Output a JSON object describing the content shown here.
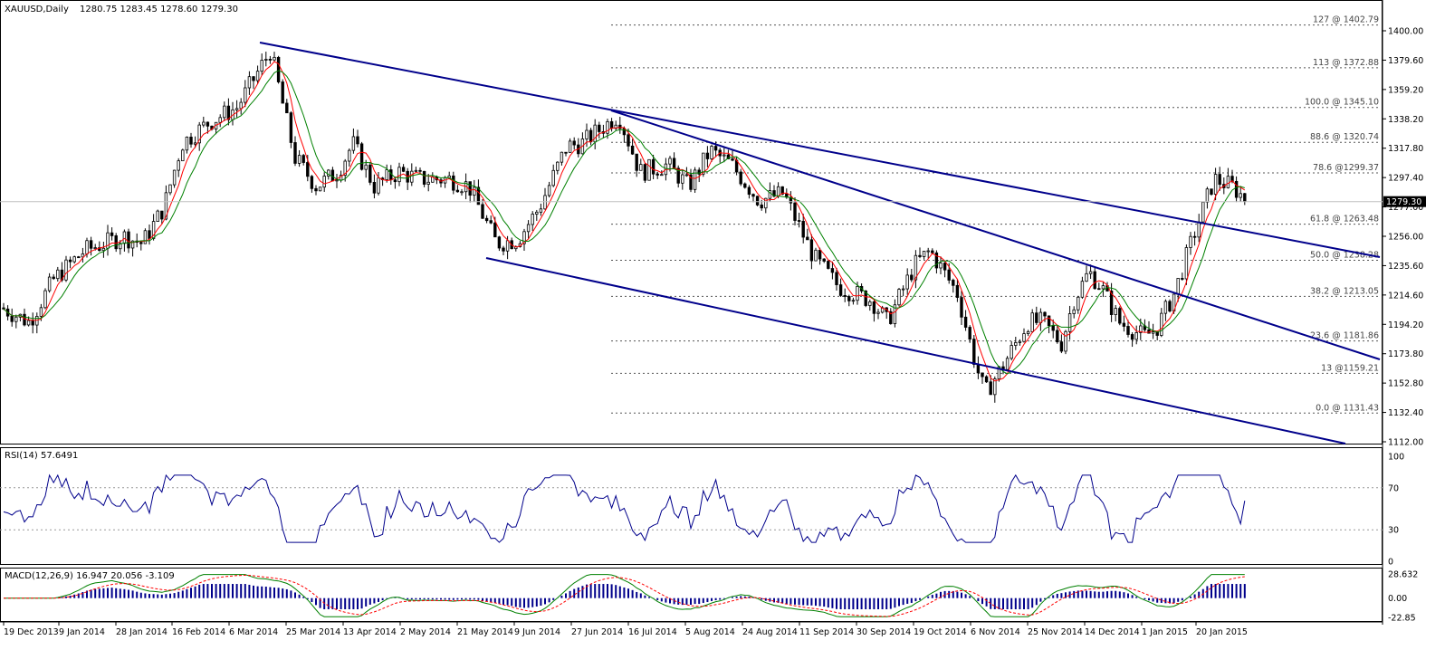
{
  "main_panel": {
    "symbol": "XAUUSD,Daily",
    "ohlc": "1280.75 1283.45 1278.60 1279.30",
    "current_price": "1279.30",
    "y_ticks": [
      "1400.00",
      "1379.60",
      "1359.20",
      "1338.20",
      "1317.80",
      "1297.40",
      "1277.00",
      "1256.00",
      "1235.60",
      "1214.60",
      "1194.20",
      "1173.80",
      "1152.80",
      "1132.40",
      "1112.00"
    ]
  },
  "rsi_panel": {
    "title": "RSI(14) 57.6491",
    "ticks": [
      "100",
      "70",
      "30",
      "0"
    ]
  },
  "macd_panel": {
    "title": "MACD(12,26,9) 16.947 20.056 -3.109",
    "ticks": [
      "28.632",
      "0.00",
      "-22.85"
    ]
  },
  "x_axis": {
    "labels": [
      "19 Dec 2013",
      "9 Jan 2014",
      "28 Jan 2014",
      "16 Feb 2014",
      "6 Mar 2014",
      "25 Mar 2014",
      "13 Apr 2014",
      "2 May 2014",
      "21 May 2014",
      "9 Jun 2014",
      "27 Jun 2014",
      "16 Jul 2014",
      "5 Aug 2014",
      "24 Aug 2014",
      "11 Sep 2014",
      "30 Sep 2014",
      "19 Oct 2014",
      "6 Nov 2014",
      "25 Nov 2014",
      "14 Dec 2014",
      "1 Jan 2015",
      "20 Jan 2015"
    ]
  },
  "chart_data": {
    "type": "line",
    "title": "XAUUSD,Daily",
    "ylim": [
      1112,
      1400
    ],
    "fibonacci_levels": [
      {
        "label": "127 @ 1402.79",
        "value": 1402.79
      },
      {
        "label": "113 @ 1372.88",
        "value": 1372.88
      },
      {
        "label": "100.0 @ 1345.10",
        "value": 1345.1
      },
      {
        "label": "88.6 @ 1320.74",
        "value": 1320.74
      },
      {
        "label": "78.6 @1299.37",
        "value": 1299.37
      },
      {
        "label": "61.8 @ 1263.48",
        "value": 1263.48
      },
      {
        "label": "50.0 @ 1238.28",
        "value": 1238.28
      },
      {
        "label": "38.2 @ 1213.05",
        "value": 1213.05
      },
      {
        "label": "23.6 @ 1181.86",
        "value": 1181.86
      },
      {
        "label": "13 @1159.21",
        "value": 1159.21
      },
      {
        "label": "0.0 @ 1131.43",
        "value": 1131.43
      }
    ],
    "price_anchors": [
      [
        "19 Dec 2013",
        1205
      ],
      [
        "28 Dec 2013",
        1195
      ],
      [
        "5 Jan 2014",
        1225
      ],
      [
        "15 Jan 2014",
        1245
      ],
      [
        "28 Jan 2014",
        1255
      ],
      [
        "3 Feb 2014",
        1250
      ],
      [
        "10 Feb 2014",
        1275
      ],
      [
        "16 Feb 2014",
        1320
      ],
      [
        "25 Feb 2014",
        1335
      ],
      [
        "6 Mar 2014",
        1345
      ],
      [
        "17 Mar 2014",
        1385
      ],
      [
        "25 Mar 2014",
        1310
      ],
      [
        "1 Apr 2014",
        1290
      ],
      [
        "8 Apr 2014",
        1300
      ],
      [
        "13 Apr 2014",
        1320
      ],
      [
        "20 Apr 2014",
        1290
      ],
      [
        "28 Apr 2014",
        1300
      ],
      [
        "5 May 2014",
        1295
      ],
      [
        "15 May 2014",
        1295
      ],
      [
        "21 May 2014",
        1290
      ],
      [
        "30 May 2014",
        1250
      ],
      [
        "6 Jun 2014",
        1253
      ],
      [
        "13 Jun 2014",
        1275
      ],
      [
        "22 Jun 2014",
        1318
      ],
      [
        "27 Jun 2014",
        1320
      ],
      [
        "9 Jul 2014",
        1340
      ],
      [
        "16 Jul 2014",
        1300
      ],
      [
        "25 Jul 2014",
        1305
      ],
      [
        "1 Aug 2014",
        1290
      ],
      [
        "8 Aug 2014",
        1315
      ],
      [
        "15 Aug 2014",
        1305
      ],
      [
        "24 Aug 2014",
        1280
      ],
      [
        "1 Sep 2014",
        1285
      ],
      [
        "11 Sep 2014",
        1240
      ],
      [
        "19 Sep 2014",
        1220
      ],
      [
        "30 Sep 2014",
        1210
      ],
      [
        "5 Oct 2014",
        1195
      ],
      [
        "14 Oct 2014",
        1235
      ],
      [
        "19 Oct 2014",
        1245
      ],
      [
        "28 Oct 2014",
        1215
      ],
      [
        "3 Nov 2014",
        1165
      ],
      [
        "6 Nov 2014",
        1145
      ],
      [
        "12 Nov 2014",
        1165
      ],
      [
        "20 Nov 2014",
        1195
      ],
      [
        "25 Nov 2014",
        1195
      ],
      [
        "1 Dec 2014",
        1180
      ],
      [
        "5 Dec 2014",
        1210
      ],
      [
        "10 Dec 2014",
        1230
      ],
      [
        "14 Dec 2014",
        1220
      ],
      [
        "20 Dec 2014",
        1195
      ],
      [
        "28 Dec 2014",
        1185
      ],
      [
        "1 Jan 2015",
        1190
      ],
      [
        "7 Jan 2015",
        1215
      ],
      [
        "14 Jan 2015",
        1260
      ],
      [
        "20 Jan 2015",
        1295
      ],
      [
        "26 Jan 2015",
        1290
      ],
      [
        "31 Jan 2015",
        1279.3
      ]
    ],
    "rsi": {
      "overbought": 70,
      "oversold": 30,
      "last": 57.6491
    },
    "macd": {
      "main": 16.947,
      "signal": 20.056,
      "histogram": -3.109,
      "ylim": [
        -22.85,
        28.632
      ]
    }
  },
  "colors": {
    "channel": "#00008b",
    "ma_fast": "#ff0000",
    "ma_slow": "#008000",
    "rsi_line": "#00008b",
    "macd_hist": "#00008b",
    "macd_signal": "#ff0000",
    "macd_main": "#008000",
    "candles": "#000000",
    "fib": "#555555"
  }
}
